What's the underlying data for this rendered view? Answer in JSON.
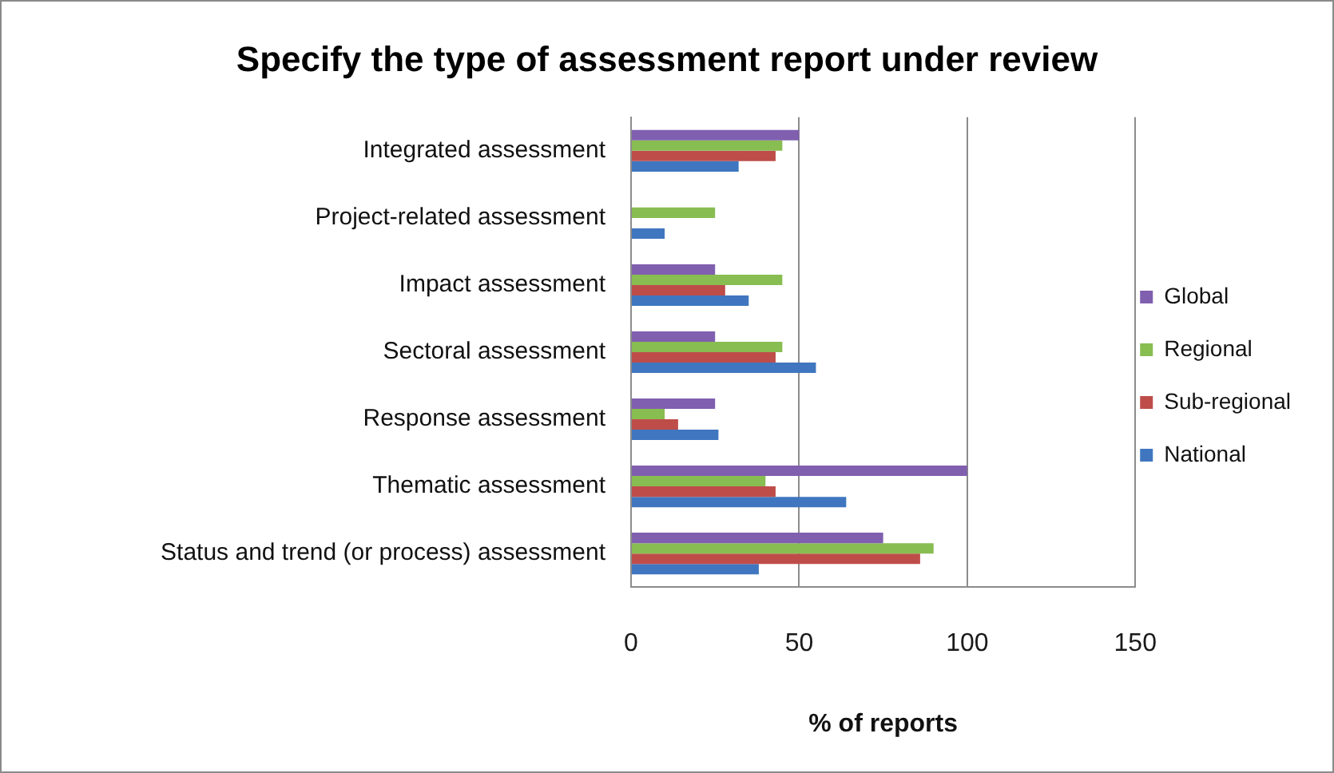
{
  "chart_data": {
    "type": "bar",
    "orientation": "horizontal",
    "title": "Specify the type of assessment report under review",
    "xlabel": "% of reports",
    "categories": [
      "Integrated assessment",
      "Project-related assessment",
      "Impact assessment",
      "Sectoral assessment",
      "Response assessment",
      "Thematic assessment",
      "Status and trend (or process) assessment"
    ],
    "series": [
      {
        "name": "Global",
        "color": "#7f5fae",
        "values": [
          50,
          null,
          25,
          25,
          25,
          100,
          75
        ]
      },
      {
        "name": "Regional",
        "color": "#88bd52",
        "values": [
          45,
          25,
          45,
          45,
          10,
          40,
          90
        ]
      },
      {
        "name": "Sub-regional",
        "color": "#be4d4a",
        "values": [
          43,
          null,
          28,
          43,
          14,
          43,
          86
        ]
      },
      {
        "name": "National",
        "color": "#3f76bf",
        "values": [
          32,
          10,
          35,
          55,
          26,
          64,
          38
        ]
      }
    ],
    "xlim": [
      0,
      150
    ],
    "xticks": [
      0,
      50,
      100,
      150
    ],
    "grid": "x",
    "legend": "right"
  }
}
